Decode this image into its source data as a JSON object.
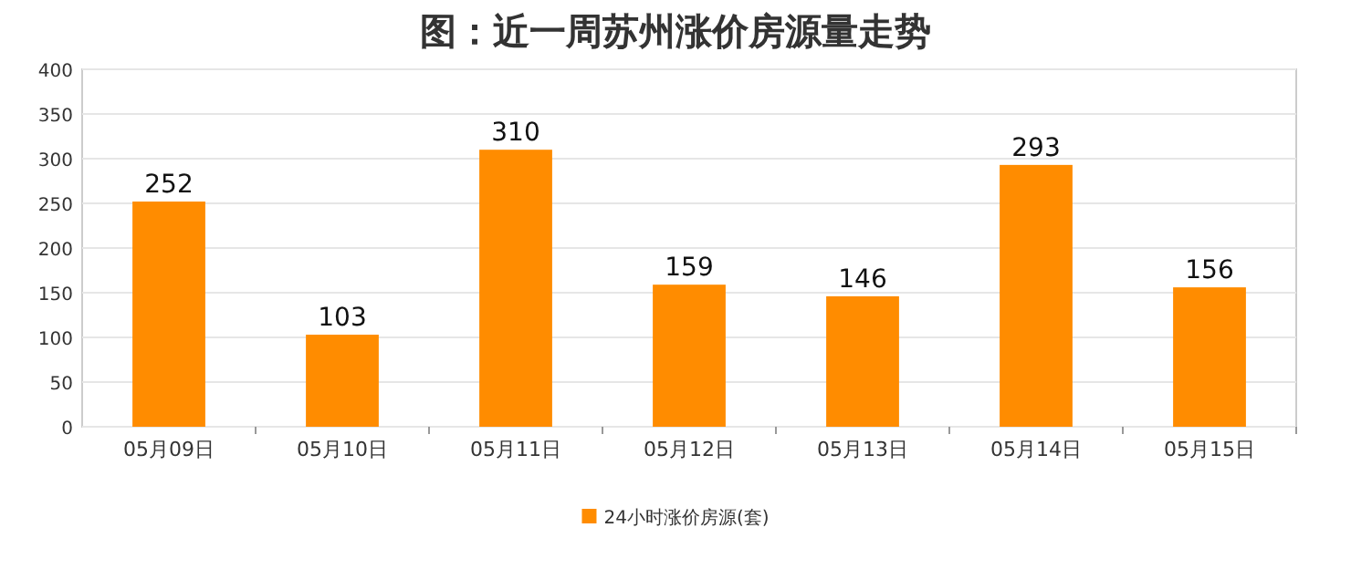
{
  "chart_data": {
    "type": "bar",
    "title": "图：近一周苏州涨价房源量走势",
    "categories": [
      "05月09日",
      "05月10日",
      "05月11日",
      "05月12日",
      "05月13日",
      "05月14日",
      "05月15日"
    ],
    "series": [
      {
        "name": "24小时涨价房源(套)",
        "color": "#ff8c00",
        "values": [
          252,
          103,
          310,
          159,
          146,
          293,
          156
        ]
      }
    ],
    "ylim": [
      0,
      400
    ],
    "yticks": [
      0,
      50,
      100,
      150,
      200,
      250,
      300,
      350,
      400
    ],
    "grid": "y",
    "legend": "bottom",
    "data_labels": true
  }
}
